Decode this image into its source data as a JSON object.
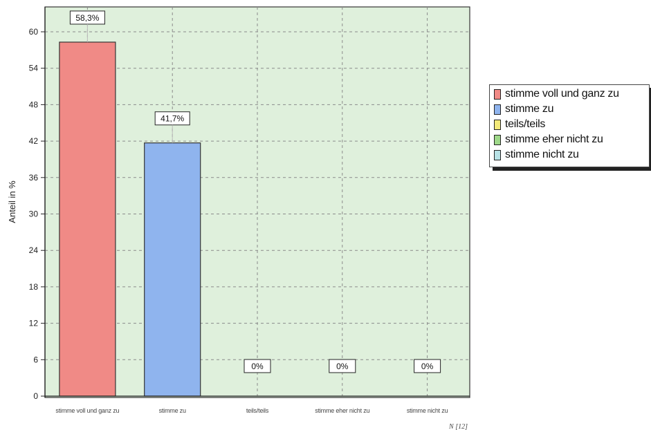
{
  "chart_data": {
    "type": "bar",
    "categories": [
      "stimme voll und ganz zu",
      "stimme zu",
      "teils/teils",
      "stimme eher nicht zu",
      "stimme nicht zu"
    ],
    "values": [
      58.3,
      41.7,
      0,
      0,
      0
    ],
    "value_labels": [
      "58,3%",
      "41,7%",
      "0%",
      "0%",
      "0%"
    ],
    "colors": [
      "#f08a86",
      "#8fb4ee",
      "#f3ea7a",
      "#9fd98a",
      "#b8e2e6"
    ],
    "ylabel": "Anteil in %",
    "ylim": [
      0,
      60
    ],
    "yticks": [
      0,
      6,
      12,
      18,
      24,
      30,
      36,
      42,
      48,
      54,
      60
    ],
    "n_label": "N [12]",
    "grid": true,
    "plot_background": "#dff0dc",
    "legend": {
      "position": "right",
      "entries": [
        "stimme voll und ganz zu",
        "stimme zu",
        "teils/teils",
        "stimme eher nicht zu",
        "stimme nicht zu"
      ]
    }
  }
}
